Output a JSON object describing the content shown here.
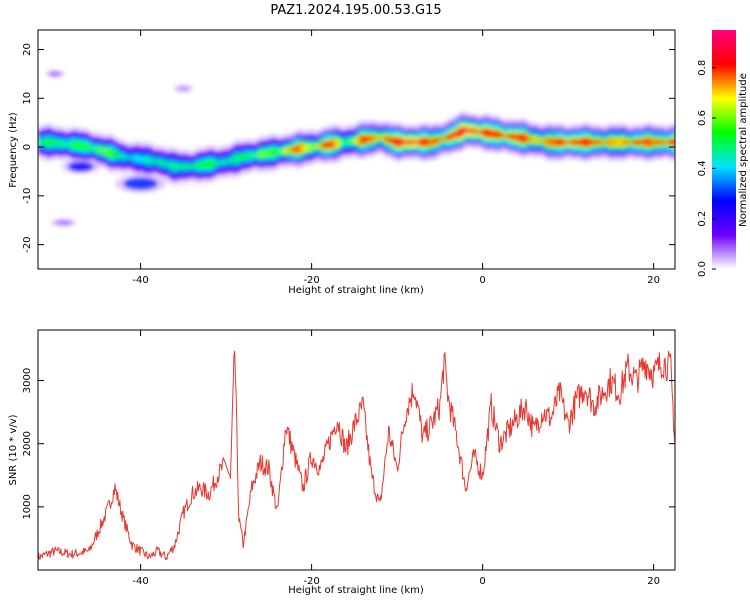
{
  "figure": {
    "title": "PAZ1.2024.195.00.53.G15"
  },
  "chart_data": [
    {
      "type": "heatmap",
      "xlabel": "Height of straight line (km)",
      "ylabel": "Frequency (Hz)",
      "xlim": [
        -52,
        22.5
      ],
      "ylim": [
        -25,
        24
      ],
      "xticks": [
        -40,
        -20,
        0,
        20
      ],
      "yticks": [
        -20,
        -10,
        0,
        10,
        20
      ],
      "grid": false,
      "colorbar": {
        "label": "Normalized spectral amplitude",
        "range": [
          0,
          0.95
        ],
        "ticks": [
          0.0,
          0.2,
          0.4,
          0.6,
          0.8
        ],
        "tick_labels": [
          "0.0",
          "0.2",
          "0.4",
          "0.6",
          "0.8"
        ],
        "colormap": [
          "#ffffff",
          "#6a00ff",
          "#0000ff",
          "#00e5ff",
          "#00ff00",
          "#ffff00",
          "#ff0000",
          "#ff0080"
        ]
      },
      "ridge": {
        "x": [
          -51,
          -48,
          -46,
          -44,
          -42,
          -40,
          -38,
          -36,
          -34,
          -32,
          -30,
          -28,
          -26,
          -24,
          -22,
          -20,
          -18,
          -16,
          -14,
          -12,
          -10,
          -8,
          -6,
          -4,
          -2,
          0,
          2,
          4,
          6,
          8,
          10,
          12,
          14,
          16,
          18,
          20,
          22
        ],
        "frequency": [
          1.0,
          0.5,
          0.0,
          -1.0,
          -2.0,
          -2.5,
          -3.0,
          -4.0,
          -4.0,
          -3.5,
          -3.0,
          -2.0,
          -1.5,
          -1.0,
          -0.5,
          0.0,
          0.5,
          1.0,
          1.5,
          2.0,
          1.0,
          1.0,
          1.0,
          2.0,
          3.5,
          3.0,
          2.5,
          2.0,
          1.5,
          1.0,
          1.0,
          1.0,
          1.0,
          1.0,
          1.0,
          1.0,
          1.0
        ],
        "amplitude": [
          0.5,
          0.55,
          0.55,
          0.6,
          0.45,
          0.4,
          0.5,
          0.45,
          0.5,
          0.55,
          0.45,
          0.5,
          0.6,
          0.55,
          0.8,
          0.6,
          0.85,
          0.5,
          0.8,
          0.7,
          0.85,
          0.9,
          0.75,
          0.8,
          0.9,
          0.85,
          0.8,
          0.85,
          0.7,
          0.75,
          0.85,
          0.8,
          0.75,
          0.7,
          0.8,
          0.75,
          0.8
        ]
      },
      "blobs": [
        {
          "x": -47,
          "frequency": -4.0,
          "amplitude": 0.25,
          "width": 3,
          "height": 2
        },
        {
          "x": -40,
          "frequency": -7.5,
          "amplitude": 0.3,
          "width": 4,
          "height": 2.5
        },
        {
          "x": -49,
          "frequency": -15.5,
          "amplitude": 0.08,
          "width": 2,
          "height": 1
        },
        {
          "x": -50,
          "frequency": 15.0,
          "amplitude": 0.08,
          "width": 1.5,
          "height": 1
        },
        {
          "x": -35,
          "frequency": 12.0,
          "amplitude": 0.06,
          "width": 1.5,
          "height": 1
        }
      ]
    },
    {
      "type": "line",
      "xlabel": "Height of straight line (km)",
      "ylabel": "SNR (10 * v/v)",
      "xlim": [
        -52,
        22.5
      ],
      "ylim": [
        0,
        3800
      ],
      "xticks": [
        -40,
        -20,
        0,
        20
      ],
      "yticks": [
        1000,
        2000,
        3000
      ],
      "grid": false,
      "series": [
        {
          "color": "#e8382f",
          "x": [
            -52,
            -50,
            -48,
            -46,
            -45,
            -44,
            -43,
            -42,
            -41,
            -40,
            -39,
            -38,
            -37,
            -36,
            -35,
            -34,
            -33,
            -32,
            -31,
            -30,
            -29.5,
            -29,
            -28.5,
            -28,
            -27,
            -26,
            -25,
            -24,
            -23,
            -22,
            -21,
            -20,
            -19,
            -18,
            -17,
            -16,
            -15,
            -14,
            -13,
            -12,
            -11,
            -10,
            -9,
            -8,
            -7,
            -6,
            -5,
            -4.5,
            -4,
            -3,
            -2,
            -1,
            0,
            1,
            2,
            3,
            4,
            5,
            6,
            7,
            8,
            9,
            10,
            11,
            12,
            13,
            14,
            15,
            16,
            17,
            18,
            19,
            20,
            21,
            22,
            22.5
          ],
          "values": [
            200,
            300,
            250,
            300,
            600,
            900,
            1300,
            800,
            400,
            300,
            200,
            300,
            200,
            400,
            900,
            1200,
            1300,
            1200,
            1500,
            1700,
            1400,
            3500,
            800,
            400,
            1300,
            1700,
            1600,
            900,
            2300,
            1800,
            1300,
            1800,
            1600,
            2000,
            2400,
            1900,
            2300,
            2600,
            1500,
            1000,
            2200,
            1600,
            2500,
            2900,
            2100,
            2300,
            2600,
            3300,
            2700,
            2100,
            1300,
            1800,
            1500,
            2600,
            2000,
            2200,
            2400,
            2600,
            2200,
            2500,
            2400,
            2800,
            2300,
            2700,
            2900,
            2600,
            2800,
            3000,
            2800,
            3200,
            3000,
            3300,
            3100,
            3300,
            3200,
            2000
          ]
        }
      ]
    }
  ]
}
